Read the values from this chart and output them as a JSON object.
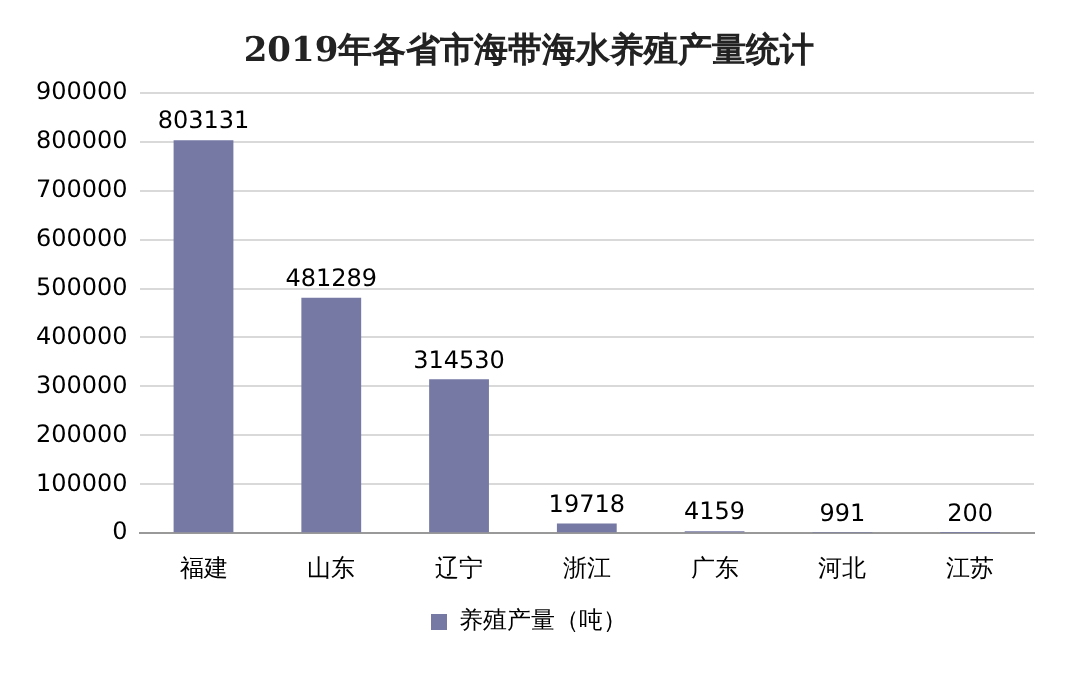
{
  "chart_data": {
    "type": "bar",
    "title": "2019年各省市海带海水养殖产量统计",
    "categories": [
      "福建",
      "山东",
      "辽宁",
      "浙江",
      "广东",
      "河北",
      "江苏"
    ],
    "series": [
      {
        "name": "养殖产量（吨）",
        "color": "#7579a3",
        "values": [
          803131,
          481289,
          314530,
          19718,
          4159,
          991,
          200
        ]
      }
    ],
    "ylim": [
      0,
      900000
    ],
    "yticks": [
      0,
      100000,
      200000,
      300000,
      400000,
      500000,
      600000,
      700000,
      800000,
      900000
    ],
    "grid": "y",
    "legend": "bottom",
    "data_labels": true
  }
}
